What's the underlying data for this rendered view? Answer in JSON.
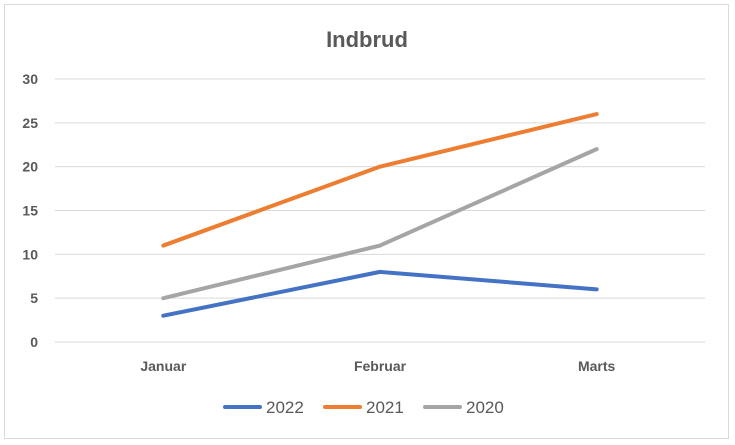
{
  "chart_data": {
    "type": "line",
    "title": "Indbrud",
    "xlabel": "",
    "ylabel": "",
    "categories": [
      "Januar",
      "Februar",
      "Marts"
    ],
    "ylim": [
      0,
      30
    ],
    "yticks": [
      0,
      5,
      10,
      15,
      20,
      25,
      30
    ],
    "grid": true,
    "legend_position": "bottom",
    "series": [
      {
        "name": "2022",
        "color": "#4472C4",
        "values": [
          3,
          8,
          6
        ]
      },
      {
        "name": "2021",
        "color": "#ED7D31",
        "values": [
          11,
          20,
          26
        ]
      },
      {
        "name": "2020",
        "color": "#A5A5A5",
        "values": [
          5,
          11,
          22
        ]
      }
    ]
  }
}
